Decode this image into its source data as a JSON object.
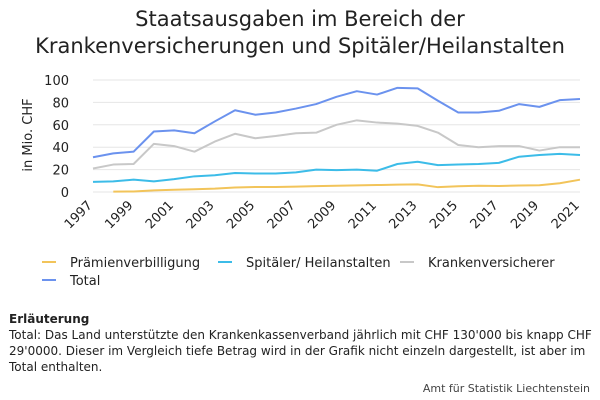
{
  "title_line1": "Staatsausgaben im Bereich der",
  "title_line2": "Krankenversicherungen und Spitäler/Heilanstalten",
  "note_heading": "Erläuterung",
  "note_text": "Total: Das Land unterstützte den Krankenkassenverband jährlich mit CHF 130'000 bis knapp CHF 29'0000. Dieser im Vergleich tiefe Betrag wird in der Grafik nicht einzeln dargestellt, ist aber im Total enthalten.",
  "source": "Amt für Statistik Liechtenstein",
  "chart_data": {
    "type": "line",
    "ylabel": "in Mio. CHF",
    "ylim": [
      0,
      100
    ],
    "yticks": [
      0,
      20,
      40,
      60,
      80,
      100
    ],
    "xlim": [
      1997,
      2021
    ],
    "xticks": [
      1997,
      1999,
      2001,
      2003,
      2005,
      2007,
      2009,
      2011,
      2013,
      2015,
      2017,
      2019,
      2021
    ],
    "grid": "horizontal",
    "legend_position": "bottom",
    "x": [
      1997,
      1998,
      1999,
      2000,
      2001,
      2002,
      2003,
      2004,
      2005,
      2006,
      2007,
      2008,
      2009,
      2010,
      2011,
      2012,
      2013,
      2014,
      2015,
      2016,
      2017,
      2018,
      2019,
      2020,
      2021
    ],
    "series": [
      {
        "name": "Prämienverbilligung",
        "color": "#f2c45a",
        "values": [
          null,
          0.3,
          0.5,
          1.5,
          2.0,
          2.5,
          3.0,
          4.0,
          4.5,
          4.5,
          4.8,
          5.3,
          5.6,
          5.9,
          6.2,
          6.6,
          6.8,
          4.3,
          5.1,
          5.6,
          5.4,
          5.8,
          6.0,
          7.8,
          11.0
        ]
      },
      {
        "name": "Spitäler/ Heilanstalten",
        "color": "#3cbce8",
        "values": [
          9.0,
          9.5,
          11.0,
          9.5,
          11.5,
          14.0,
          15.0,
          17.0,
          16.5,
          16.5,
          17.5,
          20.0,
          19.5,
          20.0,
          19.0,
          25.0,
          27.0,
          24.0,
          24.5,
          25.0,
          26.0,
          31.5,
          33.0,
          34.0,
          33.0
        ]
      },
      {
        "name": "Krankenversicherer",
        "color": "#c8c8c8",
        "values": [
          21.0,
          24.5,
          25.0,
          43.0,
          41.0,
          36.0,
          45.0,
          52.0,
          48.0,
          50.0,
          52.5,
          53.0,
          60.0,
          64.0,
          62.0,
          61.0,
          59.0,
          53.0,
          42.0,
          40.0,
          41.0,
          41.0,
          37.0,
          40.0,
          40.0
        ]
      },
      {
        "name": "Total",
        "color": "#6b92ee",
        "values": [
          31.0,
          34.5,
          36.0,
          54.0,
          55.0,
          52.5,
          63.0,
          73.0,
          69.0,
          71.0,
          74.5,
          78.5,
          85.0,
          90.0,
          87.0,
          93.0,
          92.5,
          81.5,
          71.0,
          71.0,
          72.5,
          78.5,
          76.0,
          82.0,
          83.0
        ]
      }
    ]
  }
}
